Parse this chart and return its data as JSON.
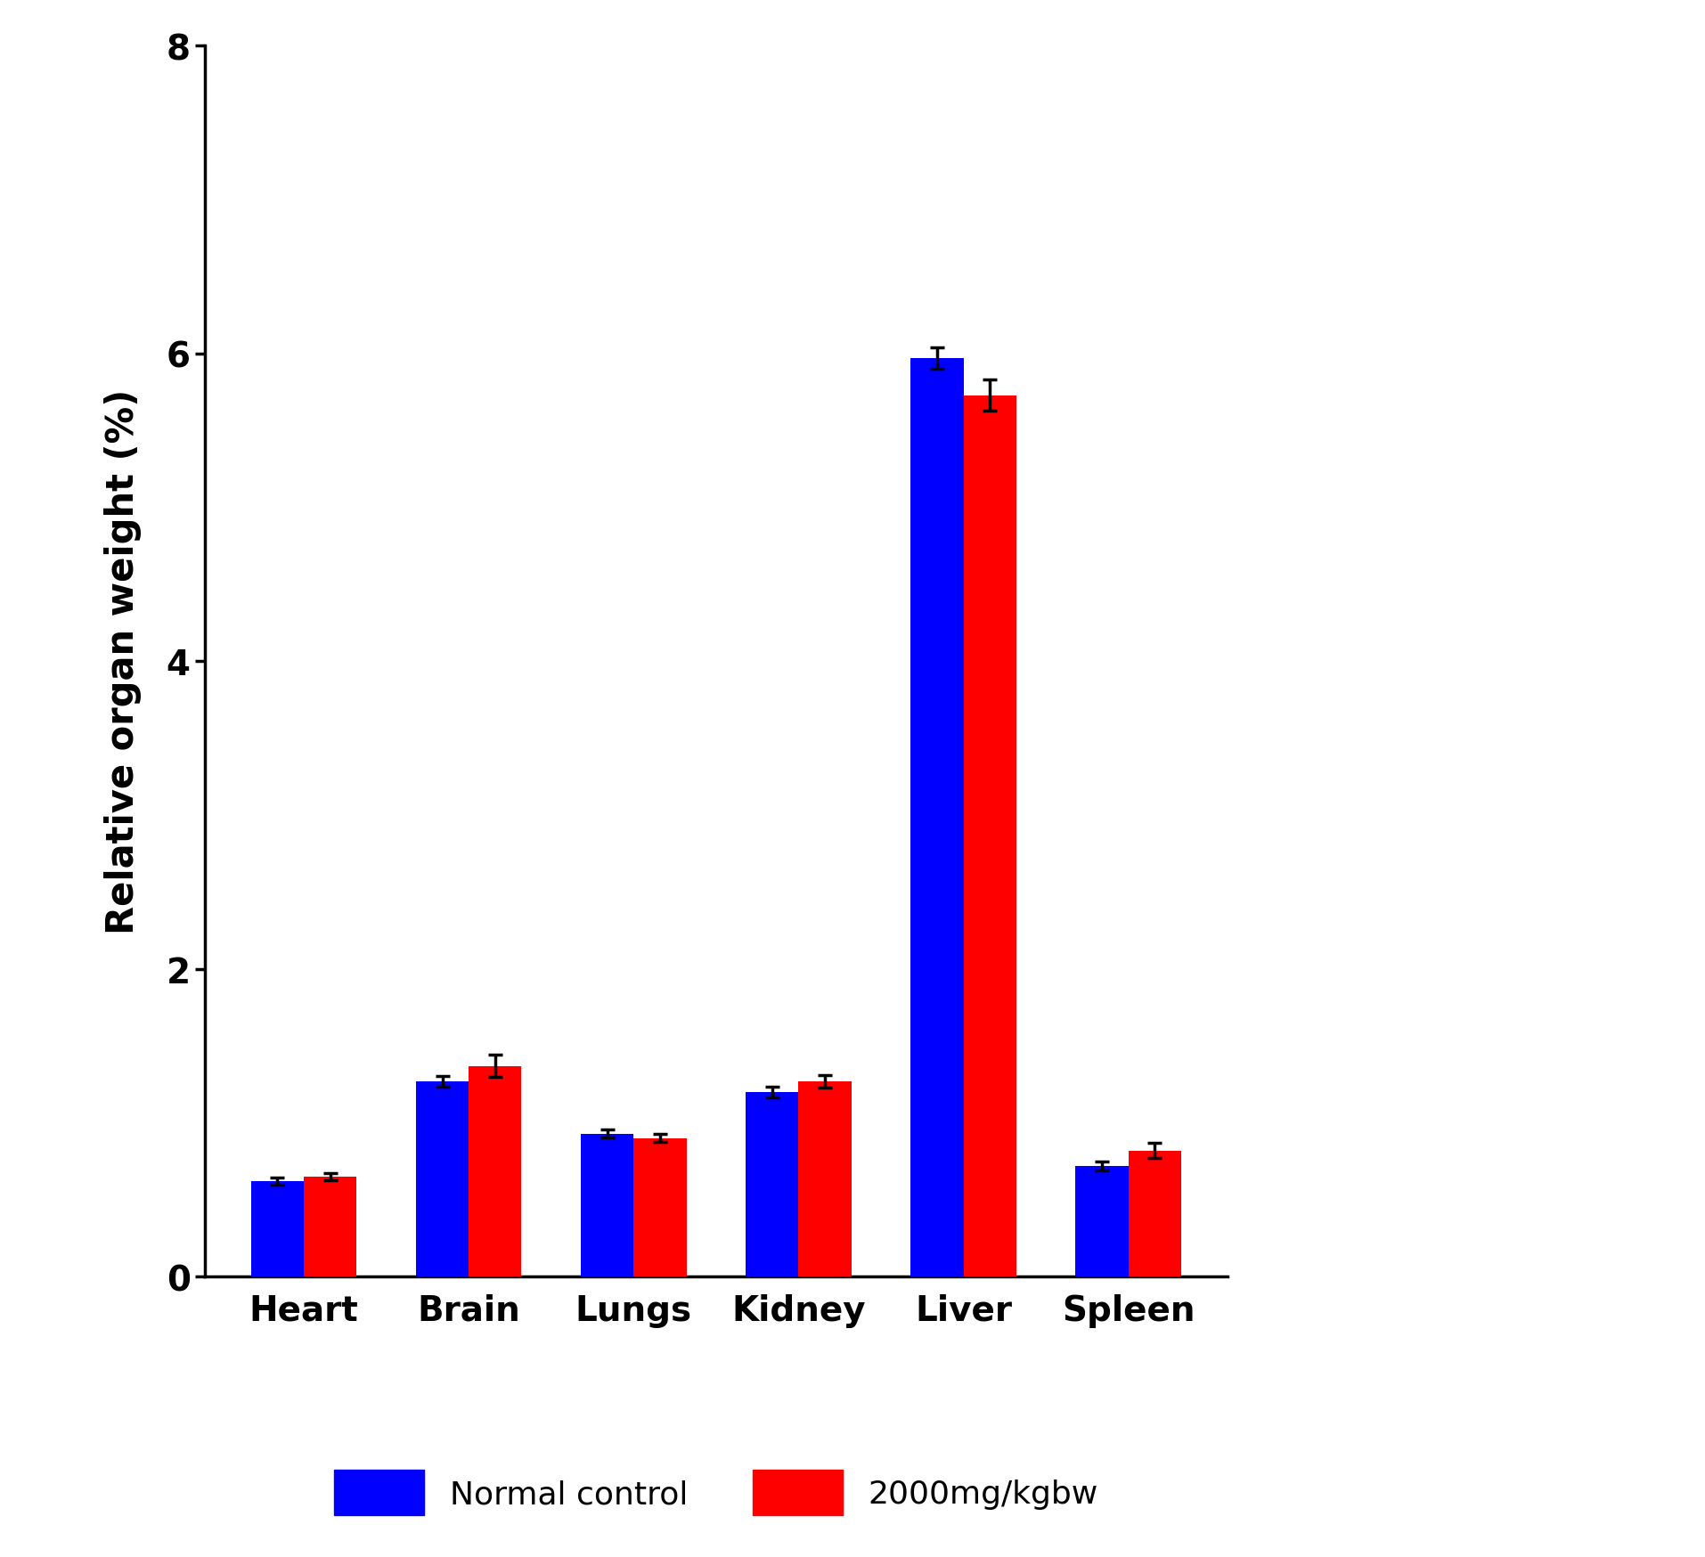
{
  "categories": [
    "Heart",
    "Brain",
    "Lungs",
    "Kidney",
    "Liver",
    "Spleen"
  ],
  "normal_control": [
    0.62,
    1.27,
    0.93,
    1.2,
    5.97,
    0.72
  ],
  "dose_2000": [
    0.65,
    1.37,
    0.9,
    1.27,
    5.73,
    0.82
  ],
  "normal_control_err": [
    0.025,
    0.035,
    0.025,
    0.035,
    0.07,
    0.03
  ],
  "dose_2000_err": [
    0.025,
    0.07,
    0.025,
    0.04,
    0.1,
    0.05
  ],
  "bar_color_normal": "#0000FF",
  "bar_color_dose": "#FF0000",
  "ylabel": "Relative organ weight (%)",
  "ylim": [
    0,
    8
  ],
  "yticks": [
    0,
    2,
    4,
    6,
    8
  ],
  "legend_normal": "Normal control",
  "legend_dose": "2000mg/kgbw",
  "bar_width": 0.32,
  "background_color": "#ffffff",
  "tick_fontsize": 28,
  "label_fontsize": 30,
  "legend_fontsize": 26,
  "capsize": 6
}
